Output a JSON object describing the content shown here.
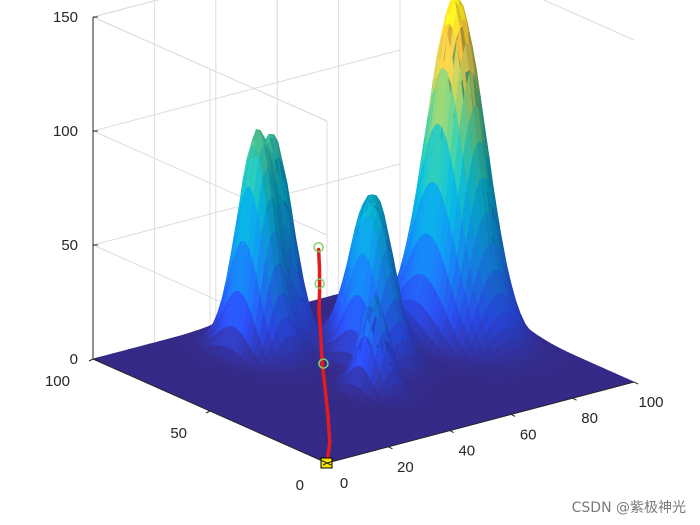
{
  "chart_data": {
    "type": "surface",
    "title": "",
    "xlabel": "",
    "ylabel": "",
    "zlabel": "",
    "xlim": [
      0,
      100
    ],
    "ylim": [
      0,
      100
    ],
    "zlim": [
      0,
      150
    ],
    "x_ticks": [
      0,
      20,
      40,
      60,
      80,
      100
    ],
    "y_ticks": [
      0,
      50,
      100
    ],
    "z_ticks": [
      0,
      50,
      100,
      150
    ],
    "grid": true,
    "colormap": "parula",
    "peaks": [
      {
        "x": 84,
        "y": 55,
        "height": 150,
        "sigma_x": 6,
        "sigma_y": 10
      },
      {
        "x": 36,
        "y": 77,
        "height": 92,
        "sigma_x": 4,
        "sigma_y": 7
      },
      {
        "x": 45,
        "y": 82,
        "height": 85,
        "sigma_x": 4,
        "sigma_y": 7
      },
      {
        "x": 55,
        "y": 52,
        "height": 70,
        "sigma_x": 4,
        "sigma_y": 7
      },
      {
        "x": 62,
        "y": 63,
        "height": 62,
        "sigma_x": 4,
        "sigma_y": 7
      },
      {
        "x": 43,
        "y": 36,
        "height": 42,
        "sigma_x": 3,
        "sigma_y": 5
      }
    ],
    "path": {
      "color": "#e41a1c",
      "points": [
        {
          "x": 0,
          "y": 0,
          "z": 0
        },
        {
          "x": 7,
          "y": 8,
          "z": 3
        },
        {
          "x": 14,
          "y": 18,
          "z": 8
        },
        {
          "x": 20,
          "y": 27,
          "z": 13
        },
        {
          "x": 25,
          "y": 35,
          "z": 20
        },
        {
          "x": 30,
          "y": 42,
          "z": 26
        },
        {
          "x": 34,
          "y": 48,
          "z": 32
        },
        {
          "x": 38,
          "y": 53,
          "z": 39
        },
        {
          "x": 41,
          "y": 57,
          "z": 45
        },
        {
          "x": 43,
          "y": 60,
          "z": 51
        }
      ],
      "waypoints": [
        {
          "x": 24,
          "y": 33,
          "z": 20
        },
        {
          "x": 38,
          "y": 53,
          "z": 41
        },
        {
          "x": 43,
          "y": 60,
          "z": 52
        }
      ],
      "start": {
        "x": 0,
        "y": 0,
        "z": 0
      }
    }
  },
  "watermark": "CSDN @紫极神光"
}
